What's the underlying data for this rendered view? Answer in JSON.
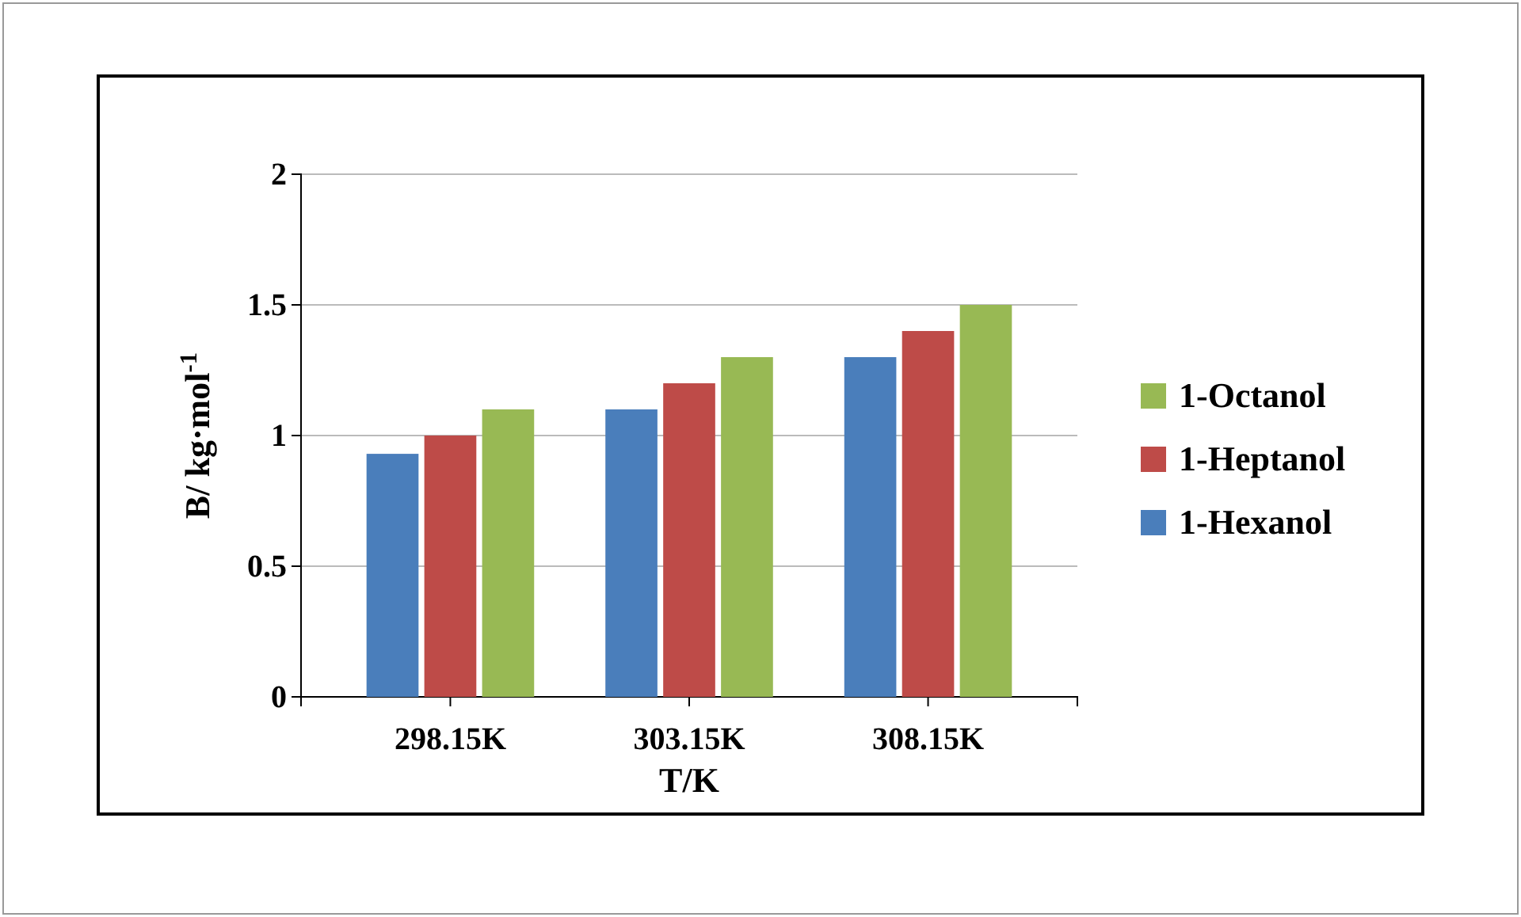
{
  "chart_data": {
    "type": "bar",
    "xlabel": "T/K",
    "ylabel": "B/ kg·mol$^{-1}$",
    "categories": [
      "298.15K",
      "303.15K",
      "308.15K"
    ],
    "series": [
      {
        "name": "1-Hexanol",
        "color": "#4a7ebb",
        "values": [
          0.93,
          1.1,
          1.3
        ]
      },
      {
        "name": "1-Heptanol",
        "color": "#be4b48",
        "values": [
          1.0,
          1.2,
          1.4
        ]
      },
      {
        "name": "1-Octanol",
        "color": "#98b954",
        "values": [
          1.1,
          1.3,
          1.5
        ]
      }
    ],
    "ylim": [
      0,
      2
    ],
    "yticks": [
      0,
      0.5,
      1,
      1.5,
      2
    ],
    "grid": "y",
    "legend": "right"
  }
}
